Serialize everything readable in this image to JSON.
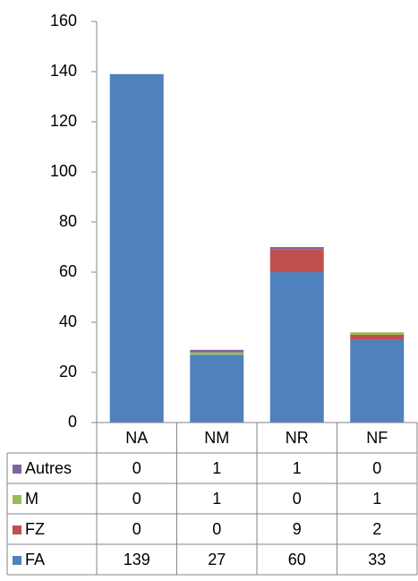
{
  "chart_data": {
    "type": "stacked_bar",
    "categories": [
      "NA",
      "NM",
      "NR",
      "NF"
    ],
    "series": [
      {
        "name": "FA",
        "color": "#4f81bd",
        "values": [
          139,
          27,
          60,
          33
        ]
      },
      {
        "name": "FZ",
        "color": "#c0504d",
        "values": [
          0,
          0,
          9,
          2
        ]
      },
      {
        "name": "M",
        "color": "#9bbb59",
        "values": [
          0,
          1,
          0,
          1
        ]
      },
      {
        "name": "Autres",
        "color": "#8064a2",
        "values": [
          0,
          1,
          1,
          0
        ]
      }
    ],
    "ylim": [
      0,
      160
    ],
    "yticks": [
      0,
      20,
      40,
      60,
      80,
      100,
      120,
      140,
      160
    ],
    "grid": false,
    "data_table": true
  }
}
